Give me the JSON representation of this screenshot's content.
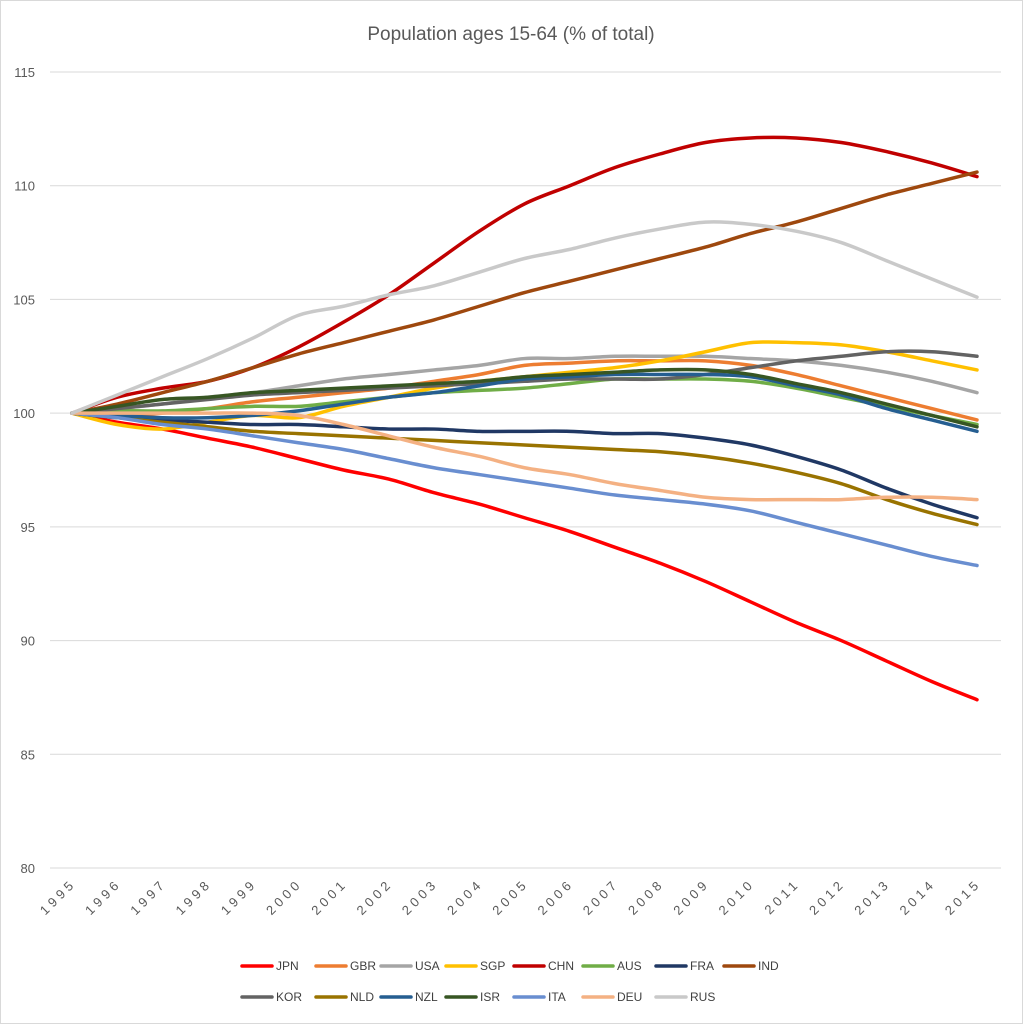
{
  "chart_data": {
    "type": "line",
    "title": "Population ages 15-64 (% of total)",
    "xlabel": "",
    "ylabel": "",
    "ylim": [
      80,
      115
    ],
    "yticks": [
      80,
      85,
      90,
      95,
      100,
      105,
      110,
      115
    ],
    "grid": true,
    "legend_position": "bottom",
    "x": [
      "1995",
      "1996",
      "1997",
      "1998",
      "1999",
      "2000",
      "2001",
      "2002",
      "2003",
      "2004",
      "2005",
      "2006",
      "2007",
      "2008",
      "2009",
      "2010",
      "2011",
      "2012",
      "2013",
      "2014",
      "2015"
    ],
    "series": [
      {
        "name": "JPN",
        "color": "#ff0000",
        "values": [
          100,
          99.6,
          99.3,
          98.9,
          98.5,
          98.0,
          97.5,
          97.1,
          96.5,
          96.0,
          95.4,
          94.8,
          94.1,
          93.4,
          92.6,
          91.7,
          90.8,
          90.0,
          89.1,
          88.2,
          87.4
        ]
      },
      {
        "name": "GBR",
        "color": "#ed7d31",
        "values": [
          100,
          99.9,
          100.0,
          100.2,
          100.5,
          100.7,
          100.9,
          101.1,
          101.4,
          101.7,
          102.1,
          102.2,
          102.3,
          102.3,
          102.3,
          102.1,
          101.7,
          101.2,
          100.7,
          100.2,
          99.7
        ]
      },
      {
        "name": "USA",
        "color": "#a5a5a5",
        "values": [
          100,
          100.2,
          100.4,
          100.7,
          100.9,
          101.2,
          101.5,
          101.7,
          101.9,
          102.1,
          102.4,
          102.4,
          102.5,
          102.5,
          102.5,
          102.4,
          102.3,
          102.1,
          101.8,
          101.4,
          100.9
        ]
      },
      {
        "name": "SGP",
        "color": "#ffc000",
        "values": [
          100,
          99.5,
          99.3,
          99.6,
          99.9,
          99.8,
          100.3,
          100.7,
          101.1,
          101.4,
          101.6,
          101.8,
          102.0,
          102.3,
          102.7,
          103.1,
          103.1,
          103.0,
          102.7,
          102.3,
          101.9
        ]
      },
      {
        "name": "CHN",
        "color": "#c00000",
        "values": [
          100,
          100.7,
          101.1,
          101.4,
          102.0,
          102.9,
          104.0,
          105.2,
          106.6,
          108.0,
          109.2,
          110.0,
          110.8,
          111.4,
          111.9,
          112.1,
          112.1,
          111.9,
          111.5,
          111.0,
          110.4
        ]
      },
      {
        "name": "AUS",
        "color": "#70ad47",
        "values": [
          100,
          100.1,
          100.1,
          100.2,
          100.3,
          100.3,
          100.5,
          100.7,
          100.9,
          101.0,
          101.1,
          101.3,
          101.5,
          101.5,
          101.5,
          101.4,
          101.1,
          100.7,
          100.3,
          99.9,
          99.5
        ]
      },
      {
        "name": "FRA",
        "color": "#203864",
        "values": [
          100,
          99.8,
          99.7,
          99.6,
          99.5,
          99.5,
          99.4,
          99.3,
          99.3,
          99.2,
          99.2,
          99.2,
          99.1,
          99.1,
          98.9,
          98.6,
          98.1,
          97.5,
          96.7,
          96.0,
          95.4
        ]
      },
      {
        "name": "IND",
        "color": "#9e480e",
        "values": [
          100,
          100.4,
          100.9,
          101.4,
          102.0,
          102.6,
          103.1,
          103.6,
          104.1,
          104.7,
          105.3,
          105.8,
          106.3,
          106.8,
          107.3,
          107.9,
          108.4,
          109.0,
          109.6,
          110.1,
          110.6
        ]
      },
      {
        "name": "KOR",
        "color": "#636363",
        "values": [
          100,
          100.2,
          100.4,
          100.6,
          100.8,
          100.9,
          101.0,
          101.1,
          101.2,
          101.3,
          101.4,
          101.5,
          101.5,
          101.5,
          101.7,
          102.0,
          102.3,
          102.5,
          102.7,
          102.7,
          102.5
        ]
      },
      {
        "name": "NLD",
        "color": "#997300",
        "values": [
          100,
          99.8,
          99.6,
          99.4,
          99.2,
          99.1,
          99.0,
          98.9,
          98.8,
          98.7,
          98.6,
          98.5,
          98.4,
          98.3,
          98.1,
          97.8,
          97.4,
          96.9,
          96.2,
          95.6,
          95.1
        ]
      },
      {
        "name": "NZL",
        "color": "#255e91",
        "values": [
          100,
          99.9,
          99.8,
          99.8,
          99.9,
          100.1,
          100.4,
          100.7,
          100.9,
          101.2,
          101.5,
          101.6,
          101.7,
          101.7,
          101.7,
          101.6,
          101.2,
          100.8,
          100.2,
          99.7,
          99.2
        ]
      },
      {
        "name": "ISR",
        "color": "#375623",
        "values": [
          100,
          100.3,
          100.6,
          100.7,
          100.9,
          101.0,
          101.1,
          101.2,
          101.3,
          101.4,
          101.6,
          101.7,
          101.8,
          101.9,
          101.9,
          101.7,
          101.3,
          100.9,
          100.4,
          99.9,
          99.4
        ]
      },
      {
        "name": "ITA",
        "color": "#698ed0",
        "values": [
          100,
          99.8,
          99.5,
          99.3,
          99.0,
          98.7,
          98.4,
          98.0,
          97.6,
          97.3,
          97.0,
          96.7,
          96.4,
          96.2,
          96.0,
          95.7,
          95.2,
          94.7,
          94.2,
          93.7,
          93.3
        ]
      },
      {
        "name": "DEU",
        "color": "#f4b183",
        "values": [
          100,
          100.0,
          100.0,
          100.0,
          100.0,
          99.9,
          99.5,
          99.0,
          98.5,
          98.1,
          97.6,
          97.3,
          96.9,
          96.6,
          96.3,
          96.2,
          96.2,
          96.2,
          96.3,
          96.3,
          96.2
        ]
      },
      {
        "name": "RUS",
        "color": "#c9c9c9",
        "values": [
          100,
          100.8,
          101.6,
          102.4,
          103.3,
          104.3,
          104.7,
          105.2,
          105.6,
          106.2,
          106.8,
          107.2,
          107.7,
          108.1,
          108.4,
          108.3,
          108.0,
          107.5,
          106.7,
          105.9,
          105.1
        ]
      }
    ]
  }
}
